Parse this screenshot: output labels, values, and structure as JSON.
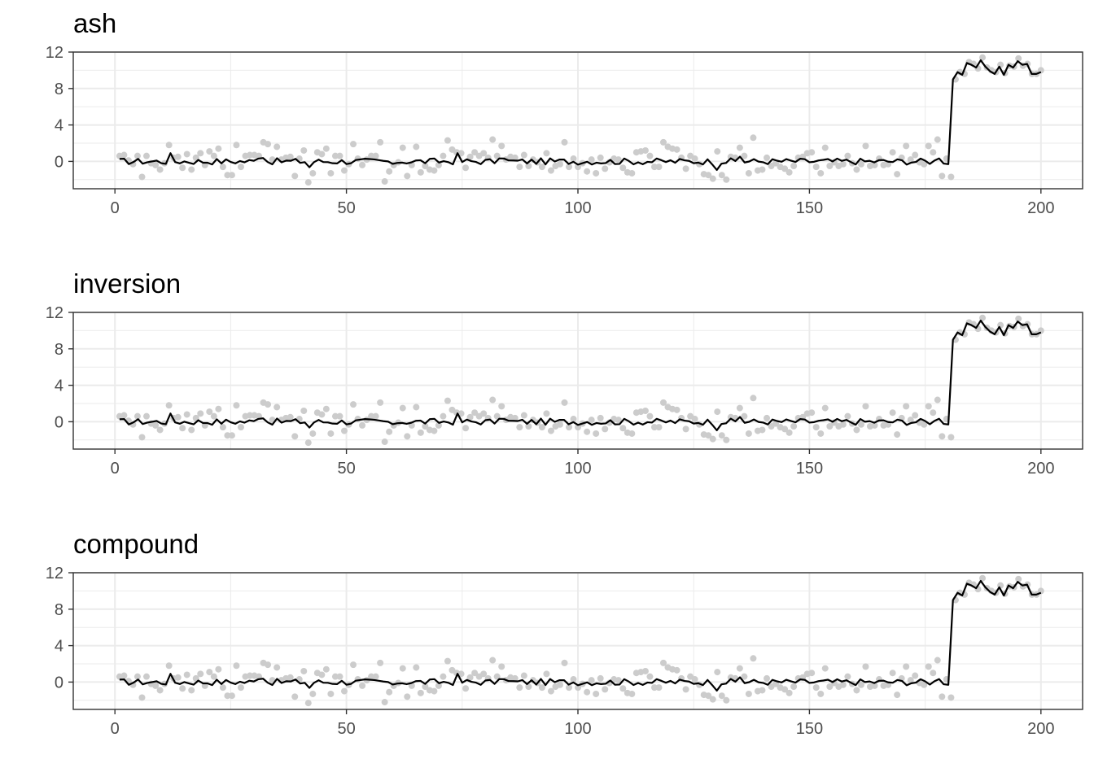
{
  "chart_data": [
    {
      "type": "line",
      "title": "ash",
      "xlabel": "",
      "ylabel": "",
      "xlim": [
        -9,
        209
      ],
      "ylim": [
        -3,
        12
      ],
      "x_ticks": [
        0,
        50,
        100,
        150,
        200
      ],
      "x_tick_labels": [
        "0",
        "50",
        "100",
        "150",
        "200"
      ],
      "y_ticks": [
        0,
        4,
        8,
        12
      ],
      "y_tick_labels": [
        "0",
        "4",
        "8",
        "12"
      ],
      "grid": true,
      "series": [
        {
          "kind": "points",
          "color": "#cccccc",
          "x": [],
          "y": []
        },
        {
          "kind": "line",
          "color": "#000000",
          "x": [],
          "y": []
        }
      ]
    },
    {
      "type": "line",
      "title": "inversion",
      "xlabel": "",
      "ylabel": "",
      "xlim": [
        -9,
        209
      ],
      "ylim": [
        -3,
        12
      ],
      "x_ticks": [
        0,
        50,
        100,
        150,
        200
      ],
      "x_tick_labels": [
        "0",
        "50",
        "100",
        "150",
        "200"
      ],
      "y_ticks": [
        0,
        4,
        8,
        12
      ],
      "y_tick_labels": [
        "0",
        "4",
        "8",
        "12"
      ],
      "grid": true,
      "series": [
        {
          "kind": "points",
          "color": "#cccccc",
          "x": [],
          "y": []
        },
        {
          "kind": "line",
          "color": "#000000",
          "x": [],
          "y": []
        }
      ]
    },
    {
      "type": "line",
      "title": "compound",
      "xlabel": "",
      "ylabel": "",
      "xlim": [
        -9,
        209
      ],
      "ylim": [
        -3,
        12
      ],
      "x_ticks": [
        0,
        50,
        100,
        150,
        200
      ],
      "x_tick_labels": [
        "0",
        "50",
        "100",
        "150",
        "200"
      ],
      "y_ticks": [
        0,
        4,
        8,
        12
      ],
      "y_tick_labels": [
        "0",
        "4",
        "8",
        "12"
      ],
      "grid": true,
      "series": [
        {
          "kind": "points",
          "color": "#cccccc",
          "x": [],
          "y": []
        },
        {
          "kind": "line",
          "color": "#000000",
          "x": [],
          "y": []
        }
      ]
    }
  ]
}
